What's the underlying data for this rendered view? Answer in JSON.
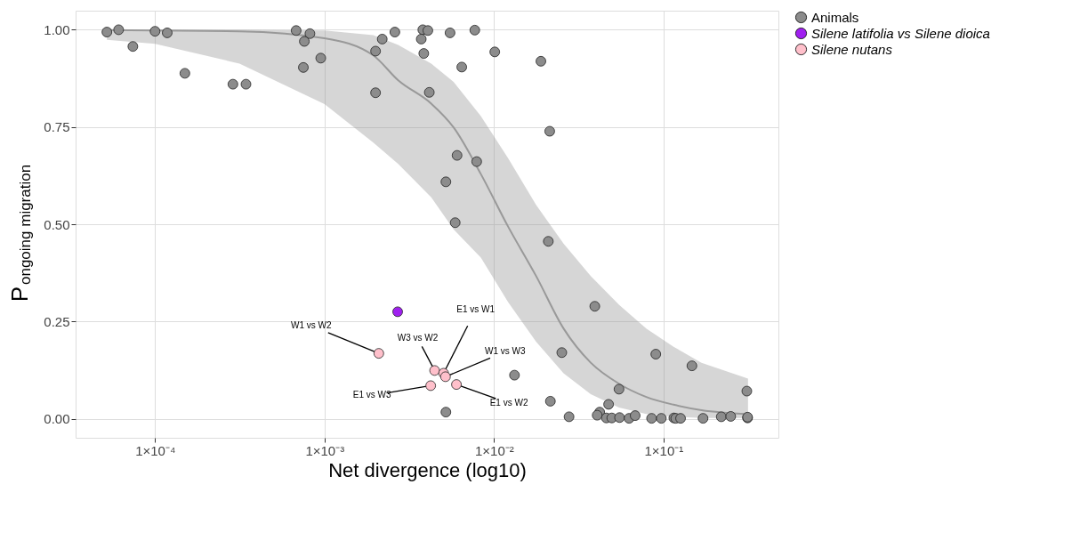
{
  "chart_data": {
    "type": "scatter",
    "xlabel": "Net divergence (log10)",
    "ylabel": "P$_{ongoing migration}$",
    "log": "x",
    "xlim": [
      3.4e-05,
      0.476
    ],
    "xticks": [
      {
        "value": 0.0001,
        "label": "1×10⁻⁴"
      },
      {
        "value": 0.001,
        "label": "1×10⁻³"
      },
      {
        "value": 0.01,
        "label": "1×10⁻²"
      },
      {
        "value": 0.1,
        "label": "1×10⁻¹"
      }
    ],
    "ylim": [
      -0.049,
      1.049
    ],
    "yticks": [
      {
        "value": 0,
        "label": "0.00"
      },
      {
        "value": 0.25,
        "label": "0.25"
      },
      {
        "value": 0.5,
        "label": "0.50"
      },
      {
        "value": 0.75,
        "label": "0.75"
      },
      {
        "value": 1,
        "label": "1.00"
      }
    ],
    "grid": true,
    "legend": "right",
    "marker": "circle",
    "series": [
      {
        "type": "line",
        "color": "#999999",
        "marker": "none",
        "line_style": "solid",
        "x": [
          5.2e-05,
          0.0001,
          0.000315,
          0.001,
          0.00194,
          0.00272,
          0.00426,
          0.00577,
          0.00836,
          0.0121,
          0.0177,
          0.0257,
          0.0372,
          0.0546,
          0.0791,
          0.1146,
          0.1675,
          0.315
        ],
        "values": [
          0.999,
          0.998,
          0.996,
          0.978,
          0.934,
          0.87,
          0.81,
          0.749,
          0.629,
          0.494,
          0.367,
          0.232,
          0.144,
          0.09,
          0.056,
          0.036,
          0.022,
          0.012
        ],
        "upper": [
          1.0,
          1.0,
          1.0,
          0.998,
          0.986,
          0.961,
          0.913,
          0.866,
          0.778,
          0.67,
          0.55,
          0.45,
          0.367,
          0.293,
          0.232,
          0.185,
          0.144,
          0.103
        ],
        "lower": [
          0.974,
          0.964,
          0.913,
          0.809,
          0.71,
          0.655,
          0.569,
          0.487,
          0.414,
          0.3,
          0.198,
          0.117,
          0.063,
          0.029,
          0.012,
          0.005,
          0.002,
          0.002
        ]
      },
      {
        "type": "scatter",
        "name": "Animals",
        "color": "#8c8c8c",
        "x": [
          5.2e-05,
          6.1e-05,
          7.4e-05,
          0.0001,
          0.000118,
          0.00015,
          0.000288,
          0.000344,
          0.00068,
          0.00082,
          0.00076,
          0.00095,
          0.00075,
          0.00219,
          0.0026,
          0.002,
          0.002,
          0.0038,
          0.00407,
          0.00372,
          0.00385,
          0.00415,
          0.0055,
          0.0077,
          0.00645,
          0.0101,
          0.0189,
          0.0213,
          0.00605,
          0.0079,
          0.0052,
          0.0059,
          0.0209,
          0.0393,
          0.0251,
          0.09,
          0.147,
          0.31,
          0.0546,
          0.0474,
          0.0132,
          0.0215,
          0.0052,
          0.0277,
          0.042,
          0.0406,
          0.046,
          0.0495,
          0.055,
          0.0626,
          0.068,
          0.085,
          0.097,
          0.115,
          0.118,
          0.126,
          0.171,
          0.219,
          0.249,
          0.313,
          0.313
        ],
        "values": [
          0.994,
          1.0,
          0.957,
          0.996,
          0.992,
          0.888,
          0.86,
          0.86,
          0.998,
          0.99,
          0.97,
          0.927,
          0.903,
          0.976,
          0.994,
          0.945,
          0.838,
          1.0,
          0.998,
          0.976,
          0.939,
          0.839,
          0.992,
          0.999,
          0.904,
          0.943,
          0.919,
          0.739,
          0.677,
          0.661,
          0.609,
          0.504,
          0.456,
          0.289,
          0.17,
          0.166,
          0.136,
          0.071,
          0.076,
          0.037,
          0.112,
          0.045,
          0.017,
          0.005,
          0.017,
          0.009,
          0.002,
          0.002,
          0.003,
          0.001,
          0.008,
          0.001,
          0.001,
          0.002,
          0.001,
          0.001,
          0.001,
          0.005,
          0.006,
          0.002,
          0.004
        ]
      },
      {
        "type": "scatter",
        "name": "Silene latifolia vs Silene dioica",
        "color": "#a020f0",
        "x": [
          0.0027
        ],
        "values": [
          0.275
        ]
      },
      {
        "type": "scatter",
        "name": "Silene nutans",
        "color": "#ffc0cb",
        "x": [
          0.00209,
          0.00446,
          0.00504,
          0.00517,
          0.00423,
          0.006
        ],
        "values": [
          0.168,
          0.124,
          0.117,
          0.108,
          0.085,
          0.088
        ]
      }
    ],
    "annotations": [
      {
        "text": "W1 vs W2",
        "x": 0.00209,
        "y": 0.168
      },
      {
        "text": "W3 vs W2",
        "x": 0.00446,
        "y": 0.124
      },
      {
        "text": "E1 vs W1",
        "x": 0.00504,
        "y": 0.117
      },
      {
        "text": "W1 vs W3",
        "x": 0.00517,
        "y": 0.108
      },
      {
        "text": "E1 vs W3",
        "x": 0.00423,
        "y": 0.085
      },
      {
        "text": "E1 vs W2",
        "x": 0.006,
        "y": 0.088
      }
    ]
  }
}
